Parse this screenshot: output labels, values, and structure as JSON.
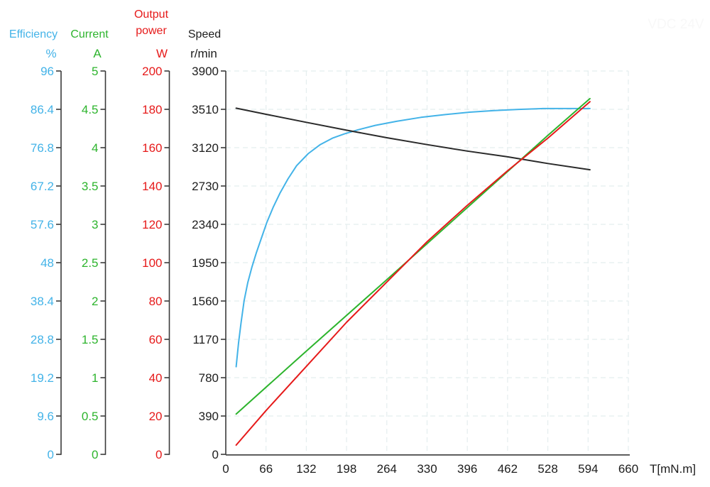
{
  "watermark": "VDC 24V",
  "axes": {
    "efficiency": {
      "title": "Efficiency",
      "unit": "%",
      "color": "#43b3e8",
      "ticks": [
        "96",
        "86.4",
        "76.8",
        "67.2",
        "57.6",
        "48",
        "38.4",
        "28.8",
        "19.2",
        "9.6",
        "0"
      ]
    },
    "current": {
      "title": "Current",
      "unit": "A",
      "color": "#2db42d",
      "ticks": [
        "5",
        "4.5",
        "4",
        "3.5",
        "3",
        "2.5",
        "2",
        "1.5",
        "1",
        "0.5",
        "0"
      ]
    },
    "power": {
      "title": "Output power",
      "unit": "W",
      "color": "#e61a1a",
      "ticks": [
        "200",
        "180",
        "160",
        "140",
        "120",
        "100",
        "80",
        "60",
        "40",
        "20",
        "0"
      ]
    },
    "speed": {
      "title": "Speed",
      "unit": "r/min",
      "color": "#1d1d1d",
      "ticks": [
        "3900",
        "3510",
        "3120",
        "2730",
        "2340",
        "1950",
        "1560",
        "1170",
        "780",
        "390",
        "0"
      ]
    }
  },
  "x_axis": {
    "label": "T[mN.m]",
    "ticks": [
      "0",
      "66",
      "132",
      "198",
      "264",
      "330",
      "396",
      "462",
      "528",
      "594",
      "660"
    ],
    "max": 660
  },
  "colors": {
    "grid": "#e4edee",
    "axis": "#3a3a3a",
    "text": "#1d1d1d",
    "watermark": "#f8f8f8"
  },
  "chart_data": {
    "type": "line",
    "title": "",
    "xlabel": "T[mN.m]",
    "xlim": [
      0,
      660
    ],
    "grid": true,
    "legend_position": "top-left-multi-axis",
    "series": [
      {
        "name": "Efficiency",
        "unit": "%",
        "color": "#43b3e8",
        "ylim": [
          0,
          96
        ],
        "points": [
          [
            17,
            22
          ],
          [
            21,
            28
          ],
          [
            25,
            33
          ],
          [
            30,
            38.5
          ],
          [
            36,
            43
          ],
          [
            43,
            47
          ],
          [
            50,
            50.5
          ],
          [
            58,
            54
          ],
          [
            67,
            58
          ],
          [
            78,
            62
          ],
          [
            89,
            65.5
          ],
          [
            102,
            69
          ],
          [
            116,
            72.3
          ],
          [
            135,
            75.3
          ],
          [
            155,
            77.6
          ],
          [
            175,
            79.2
          ],
          [
            195,
            80.3
          ],
          [
            217,
            81.3
          ],
          [
            245,
            82.4
          ],
          [
            280,
            83.4
          ],
          [
            320,
            84.4
          ],
          [
            360,
            85.1
          ],
          [
            400,
            85.7
          ],
          [
            440,
            86.1
          ],
          [
            480,
            86.4
          ],
          [
            520,
            86.6
          ],
          [
            560,
            86.6
          ],
          [
            597,
            86.6
          ]
        ]
      },
      {
        "name": "Speed",
        "unit": "r/min",
        "color": "#2a2a2a",
        "ylim": [
          0,
          3900
        ],
        "points": [
          [
            17,
            3522
          ],
          [
            66,
            3460
          ],
          [
            132,
            3378
          ],
          [
            198,
            3298
          ],
          [
            264,
            3222
          ],
          [
            330,
            3152
          ],
          [
            396,
            3086
          ],
          [
            462,
            3028
          ],
          [
            528,
            2960
          ],
          [
            597,
            2896
          ]
        ]
      },
      {
        "name": "Current",
        "unit": "A",
        "color": "#2db42d",
        "ylim": [
          0,
          5
        ],
        "points": [
          [
            17,
            0.53
          ],
          [
            132,
            1.35
          ],
          [
            264,
            2.28
          ],
          [
            396,
            3.22
          ],
          [
            528,
            4.16
          ],
          [
            597,
            4.64
          ]
        ]
      },
      {
        "name": "Output power",
        "unit": "W",
        "color": "#e61a1a",
        "ylim": [
          0,
          200
        ],
        "points": [
          [
            17,
            5
          ],
          [
            66,
            23
          ],
          [
            132,
            46
          ],
          [
            198,
            69
          ],
          [
            264,
            90
          ],
          [
            330,
            111
          ],
          [
            396,
            130
          ],
          [
            462,
            148
          ],
          [
            528,
            165
          ],
          [
            597,
            184
          ]
        ]
      }
    ]
  }
}
